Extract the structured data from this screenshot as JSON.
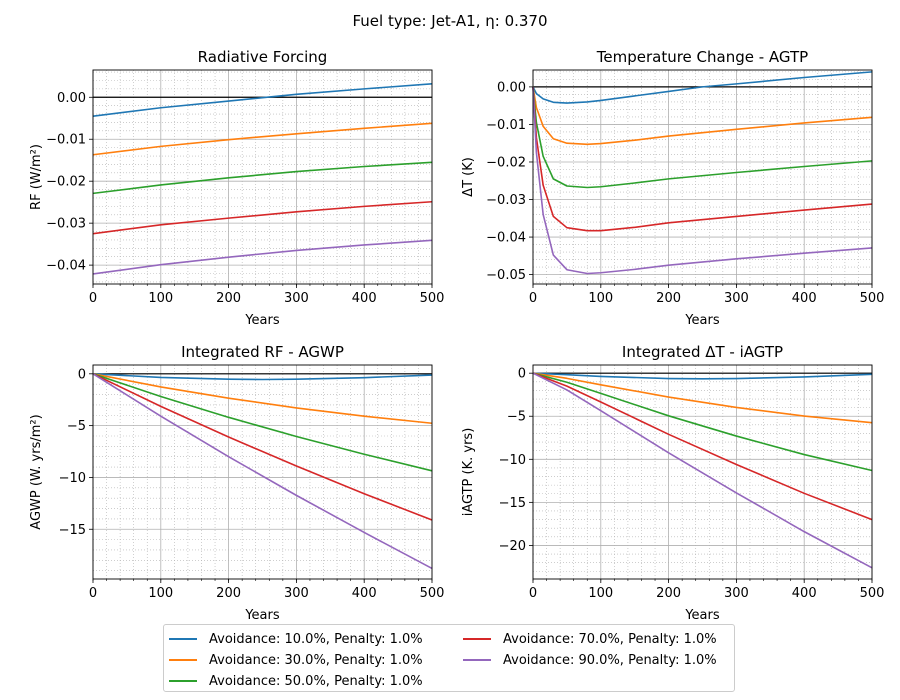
{
  "figure": {
    "title": "Fuel type: Jet-A1, η: 0.370"
  },
  "legend": {
    "items": [
      {
        "label": "Avoidance: 10.0%, Penalty: 1.0%",
        "color": "#1f77b4"
      },
      {
        "label": "Avoidance: 30.0%, Penalty: 1.0%",
        "color": "#ff7f0e"
      },
      {
        "label": "Avoidance: 50.0%, Penalty: 1.0%",
        "color": "#2ca02c"
      },
      {
        "label": "Avoidance: 70.0%, Penalty: 1.0%",
        "color": "#d62728"
      },
      {
        "label": "Avoidance: 90.0%, Penalty: 1.0%",
        "color": "#9467bd"
      }
    ],
    "placement": "bottom-center"
  },
  "chart_data": [
    {
      "type": "line",
      "title": "Radiative Forcing",
      "xlabel": "Years",
      "ylabel": "RF (W/m²)",
      "xlim": [
        0,
        500
      ],
      "ylim": [
        -0.0445,
        0.0065
      ],
      "xticks": [
        0,
        100,
        200,
        300,
        400,
        500
      ],
      "yticks": [
        0.0,
        -0.01,
        -0.02,
        -0.03,
        -0.04
      ],
      "ytick_labels": [
        "0.00",
        "−0.01",
        "−0.02",
        "−0.03",
        "−0.04"
      ],
      "zero_line": true,
      "grid": true,
      "series": [
        {
          "name": "Avoidance: 10.0%, Penalty: 1.0%",
          "x": [
            0,
            100,
            200,
            250,
            300,
            400,
            500
          ],
          "y": [
            -0.0045,
            -0.0025,
            -0.0009,
            -0.0001,
            0.0007,
            0.002,
            0.0032
          ]
        },
        {
          "name": "Avoidance: 30.0%, Penalty: 1.0%",
          "x": [
            0,
            100,
            200,
            300,
            400,
            500
          ],
          "y": [
            -0.0137,
            -0.0117,
            -0.0101,
            -0.0087,
            -0.0074,
            -0.0062
          ]
        },
        {
          "name": "Avoidance: 50.0%, Penalty: 1.0%",
          "x": [
            0,
            100,
            200,
            300,
            400,
            500
          ],
          "y": [
            -0.0229,
            -0.0209,
            -0.0192,
            -0.0177,
            -0.0165,
            -0.0155
          ]
        },
        {
          "name": "Avoidance: 70.0%, Penalty: 1.0%",
          "x": [
            0,
            100,
            200,
            300,
            400,
            500
          ],
          "y": [
            -0.0325,
            -0.0304,
            -0.0288,
            -0.0273,
            -0.026,
            -0.0249
          ]
        },
        {
          "name": "Avoidance: 90.0%, Penalty: 1.0%",
          "x": [
            0,
            100,
            200,
            300,
            400,
            500
          ],
          "y": [
            -0.0421,
            -0.0399,
            -0.0381,
            -0.0365,
            -0.0352,
            -0.0341
          ]
        }
      ]
    },
    {
      "type": "line",
      "title": "Temperature Change - AGTP",
      "xlabel": "Years",
      "ylabel": "ΔT (K)",
      "xlim": [
        0,
        500
      ],
      "ylim": [
        -0.0525,
        0.0045
      ],
      "xticks": [
        0,
        100,
        200,
        300,
        400,
        500
      ],
      "yticks": [
        0.0,
        -0.01,
        -0.02,
        -0.03,
        -0.04,
        -0.05
      ],
      "ytick_labels": [
        "0.00",
        "−0.01",
        "−0.02",
        "−0.03",
        "−0.04",
        "−0.05"
      ],
      "zero_line": true,
      "grid": true,
      "series": [
        {
          "name": "Avoidance: 10.0%, Penalty: 1.0%",
          "x": [
            0,
            5,
            15,
            30,
            50,
            80,
            100,
            150,
            200,
            250,
            300,
            400,
            500
          ],
          "y": [
            0.0,
            -0.0018,
            -0.0032,
            -0.0041,
            -0.0043,
            -0.004,
            -0.0036,
            -0.0024,
            -0.0012,
            0.0,
            0.0008,
            0.0025,
            0.004
          ]
        },
        {
          "name": "Avoidance: 30.0%, Penalty: 1.0%",
          "x": [
            0,
            5,
            15,
            30,
            50,
            80,
            100,
            150,
            200,
            300,
            400,
            500
          ],
          "y": [
            0.0,
            -0.0055,
            -0.0105,
            -0.0138,
            -0.015,
            -0.0153,
            -0.0151,
            -0.0142,
            -0.0131,
            -0.0113,
            -0.0096,
            -0.0081
          ]
        },
        {
          "name": "Avoidance: 50.0%, Penalty: 1.0%",
          "x": [
            0,
            5,
            15,
            30,
            50,
            80,
            100,
            150,
            200,
            300,
            400,
            500
          ],
          "y": [
            0.0,
            -0.0095,
            -0.0185,
            -0.0245,
            -0.0264,
            -0.0268,
            -0.0266,
            -0.0256,
            -0.0245,
            -0.0228,
            -0.0212,
            -0.0197
          ]
        },
        {
          "name": "Avoidance: 70.0%, Penalty: 1.0%",
          "x": [
            0,
            5,
            15,
            30,
            50,
            80,
            100,
            150,
            200,
            300,
            400,
            500
          ],
          "y": [
            0.0,
            -0.0135,
            -0.0262,
            -0.0345,
            -0.0375,
            -0.0383,
            -0.0383,
            -0.0374,
            -0.0362,
            -0.0345,
            -0.0328,
            -0.0312
          ]
        },
        {
          "name": "Avoidance: 90.0%, Penalty: 1.0%",
          "x": [
            0,
            5,
            15,
            30,
            50,
            80,
            100,
            150,
            200,
            300,
            400,
            500
          ],
          "y": [
            0.0,
            -0.0175,
            -0.034,
            -0.0448,
            -0.0487,
            -0.0497,
            -0.0495,
            -0.0486,
            -0.0475,
            -0.0458,
            -0.0443,
            -0.0429
          ]
        }
      ]
    },
    {
      "type": "line",
      "title": "Integrated RF - AGWP",
      "xlabel": "Years",
      "ylabel": "AGWP (W. yrs/m²)",
      "xlim": [
        0,
        500
      ],
      "ylim": [
        -19.8,
        0.85
      ],
      "xticks": [
        0,
        100,
        200,
        300,
        400,
        500
      ],
      "yticks": [
        0,
        -5,
        -10,
        -15
      ],
      "ytick_labels": [
        "0",
        "−5",
        "−10",
        "−15"
      ],
      "zero_line": true,
      "grid": true,
      "series": [
        {
          "name": "Avoidance: 10.0%, Penalty: 1.0%",
          "x": [
            0,
            100,
            200,
            250,
            300,
            400,
            500
          ],
          "y": [
            0.0,
            -0.35,
            -0.52,
            -0.55,
            -0.52,
            -0.37,
            -0.12
          ]
        },
        {
          "name": "Avoidance: 30.0%, Penalty: 1.0%",
          "x": [
            0,
            100,
            200,
            300,
            400,
            500
          ],
          "y": [
            0.0,
            -1.27,
            -2.35,
            -3.29,
            -4.09,
            -4.77
          ]
        },
        {
          "name": "Avoidance: 50.0%, Penalty: 1.0%",
          "x": [
            0,
            100,
            200,
            300,
            400,
            500
          ],
          "y": [
            0.0,
            -2.19,
            -4.2,
            -6.05,
            -7.76,
            -9.36
          ]
        },
        {
          "name": "Avoidance: 70.0%, Penalty: 1.0%",
          "x": [
            0,
            100,
            200,
            300,
            400,
            500
          ],
          "y": [
            0.0,
            -3.14,
            -6.1,
            -8.9,
            -11.57,
            -14.11
          ]
        },
        {
          "name": "Avoidance: 90.0%, Penalty: 1.0%",
          "x": [
            0,
            100,
            200,
            300,
            400,
            500
          ],
          "y": [
            0.0,
            -4.09,
            -8.0,
            -11.73,
            -15.31,
            -18.78
          ]
        }
      ]
    },
    {
      "type": "line",
      "title": "Integrated ΔT - iAGTP",
      "xlabel": "Years",
      "ylabel": "iAGTP (K. yrs)",
      "xlim": [
        0,
        500
      ],
      "ylim": [
        -23.9,
        0.95
      ],
      "xticks": [
        0,
        100,
        200,
        300,
        400,
        500
      ],
      "yticks": [
        0,
        -5,
        -10,
        -15,
        -20
      ],
      "ytick_labels": [
        "0",
        "−5",
        "−10",
        "−15",
        "−20"
      ],
      "zero_line": true,
      "grid": true,
      "series": [
        {
          "name": "Avoidance: 10.0%, Penalty: 1.0%",
          "x": [
            0,
            50,
            100,
            200,
            250,
            300,
            400,
            500
          ],
          "y": [
            0.0,
            -0.18,
            -0.38,
            -0.62,
            -0.66,
            -0.62,
            -0.44,
            -0.13
          ]
        },
        {
          "name": "Avoidance: 30.0%, Penalty: 1.0%",
          "x": [
            0,
            50,
            100,
            200,
            300,
            400,
            500
          ],
          "y": [
            0.0,
            -0.6,
            -1.35,
            -2.77,
            -3.98,
            -4.98,
            -5.75
          ]
        },
        {
          "name": "Avoidance: 50.0%, Penalty: 1.0%",
          "x": [
            0,
            50,
            100,
            200,
            300,
            400,
            500
          ],
          "y": [
            0.0,
            -1.05,
            -2.35,
            -4.95,
            -7.3,
            -9.45,
            -11.3
          ]
        },
        {
          "name": "Avoidance: 70.0%, Penalty: 1.0%",
          "x": [
            0,
            50,
            100,
            200,
            300,
            400,
            500
          ],
          "y": [
            0.0,
            -1.5,
            -3.35,
            -7.1,
            -10.6,
            -13.95,
            -17.0
          ]
        },
        {
          "name": "Avoidance: 90.0%, Penalty: 1.0%",
          "x": [
            0,
            50,
            100,
            200,
            300,
            400,
            500
          ],
          "y": [
            0.0,
            -1.95,
            -4.35,
            -9.25,
            -13.9,
            -18.4,
            -22.6
          ]
        }
      ]
    }
  ]
}
